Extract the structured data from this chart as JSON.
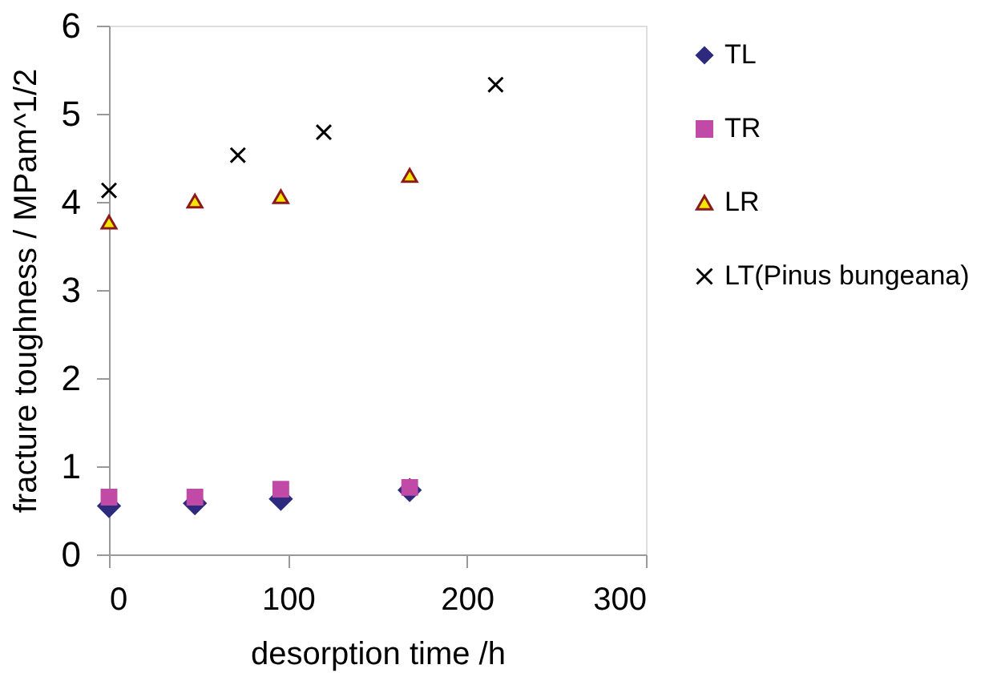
{
  "chart_data": {
    "type": "scatter",
    "xlabel": "desorption time /h",
    "ylabel": "fracture toughness / MPam^1/2",
    "xlim": [
      0,
      300
    ],
    "xticks": [
      0,
      100,
      200,
      300
    ],
    "ylim": [
      0,
      6
    ],
    "yticks": [
      0,
      1,
      2,
      3,
      4,
      5,
      6
    ],
    "grid": false,
    "legend": "right",
    "series": [
      {
        "name": "TL",
        "color": "#2e2a7e",
        "marker": "diamond",
        "x": [
          0,
          48,
          96,
          168
        ],
        "values": [
          0.55,
          0.58,
          0.63,
          0.73
        ]
      },
      {
        "name": "TR",
        "color": "#c04aa6",
        "marker": "square",
        "x": [
          0,
          48,
          96,
          168
        ],
        "values": [
          0.65,
          0.65,
          0.74,
          0.76
        ]
      },
      {
        "name": "LR",
        "color": "#f5e600",
        "marker": "triangle",
        "x": [
          0,
          48,
          96,
          168
        ],
        "values": [
          3.77,
          4.01,
          4.06,
          4.3
        ]
      },
      {
        "name": "LT(Pinus bungeana)",
        "color": "#000000",
        "marker": "cross",
        "x": [
          0,
          72,
          120,
          216
        ],
        "values": [
          4.13,
          4.53,
          4.79,
          5.33
        ]
      }
    ]
  }
}
